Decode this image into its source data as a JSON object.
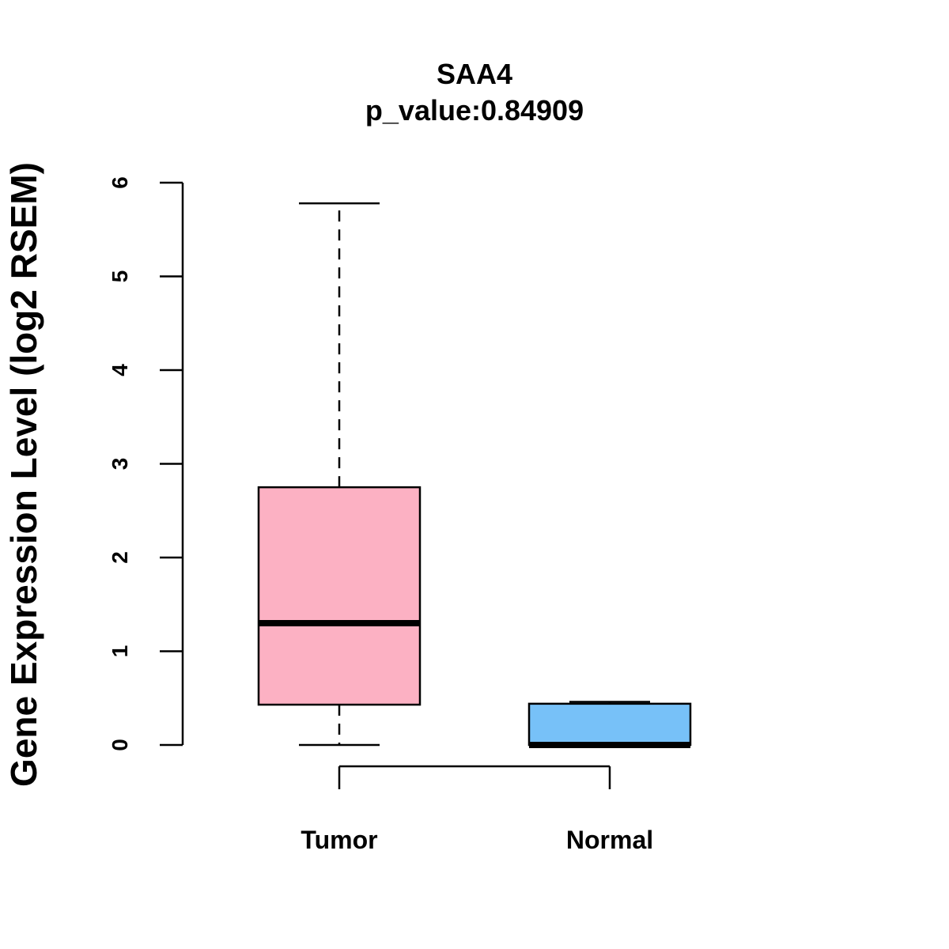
{
  "chart_data": {
    "type": "boxplot",
    "title": "SAA4",
    "subtitle": "p_value:0.84909",
    "xlabel": "",
    "ylabel": "Gene Expression Level (log2 RSEM)",
    "ylim": [
      0,
      6
    ],
    "yticks": [
      0,
      1,
      2,
      3,
      4,
      5,
      6
    ],
    "ytick_labels": [
      "0",
      "1",
      "2",
      "3",
      "4",
      "5",
      "6"
    ],
    "grid": false,
    "categories": [
      "Tumor",
      "Normal"
    ],
    "boxes": [
      {
        "name": "Tumor",
        "whisker_low": 0.0,
        "q1": 0.43,
        "median": 1.3,
        "q3": 2.75,
        "whisker_high": 5.78,
        "color": "#fcb1c3"
      },
      {
        "name": "Normal",
        "whisker_low": 0.0,
        "q1": 0.0,
        "median": 0.0,
        "q3": 0.44,
        "whisker_high": 0.46,
        "color": "#77c1f8"
      }
    ]
  }
}
